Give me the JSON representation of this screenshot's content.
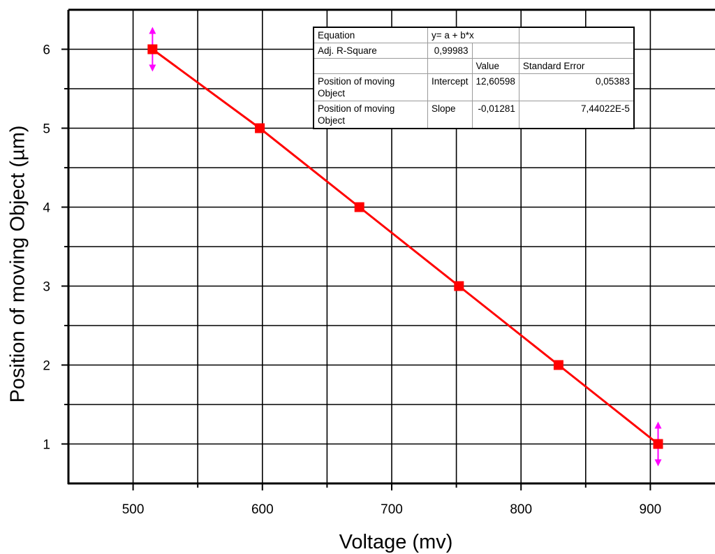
{
  "chart_data": {
    "type": "line",
    "xlabel": "Voltage (mv)",
    "ylabel": "Position of moving Object (µm)",
    "xlim": [
      450,
      950
    ],
    "ylim": [
      0.5,
      6.5
    ],
    "x_ticks": [
      500,
      600,
      700,
      800,
      900
    ],
    "y_ticks": [
      1,
      2,
      3,
      4,
      5,
      6
    ],
    "grid": true,
    "series": [
      {
        "color": "#ff0000",
        "marker": "square",
        "x": [
          515,
          598,
          675,
          752,
          829,
          906
        ],
        "y": [
          6,
          5,
          4,
          3,
          2,
          1
        ]
      }
    ],
    "error_marker_color": "#ff00ff",
    "fit_table": {
      "equation_label": "Equation",
      "equation": "y= a + b*x",
      "r2_label": "Adj. R-Square",
      "r2_value": "0,99983",
      "col_value": "Value",
      "col_error": "Standard Error",
      "rows": [
        {
          "name": "Position of moving Object",
          "param": "Intercept",
          "value": "12,60598",
          "error": "0,05383"
        },
        {
          "name": "Position of moving Object",
          "param": "Slope",
          "value": "-0,01281",
          "error": "7,44022E-5"
        }
      ]
    }
  }
}
